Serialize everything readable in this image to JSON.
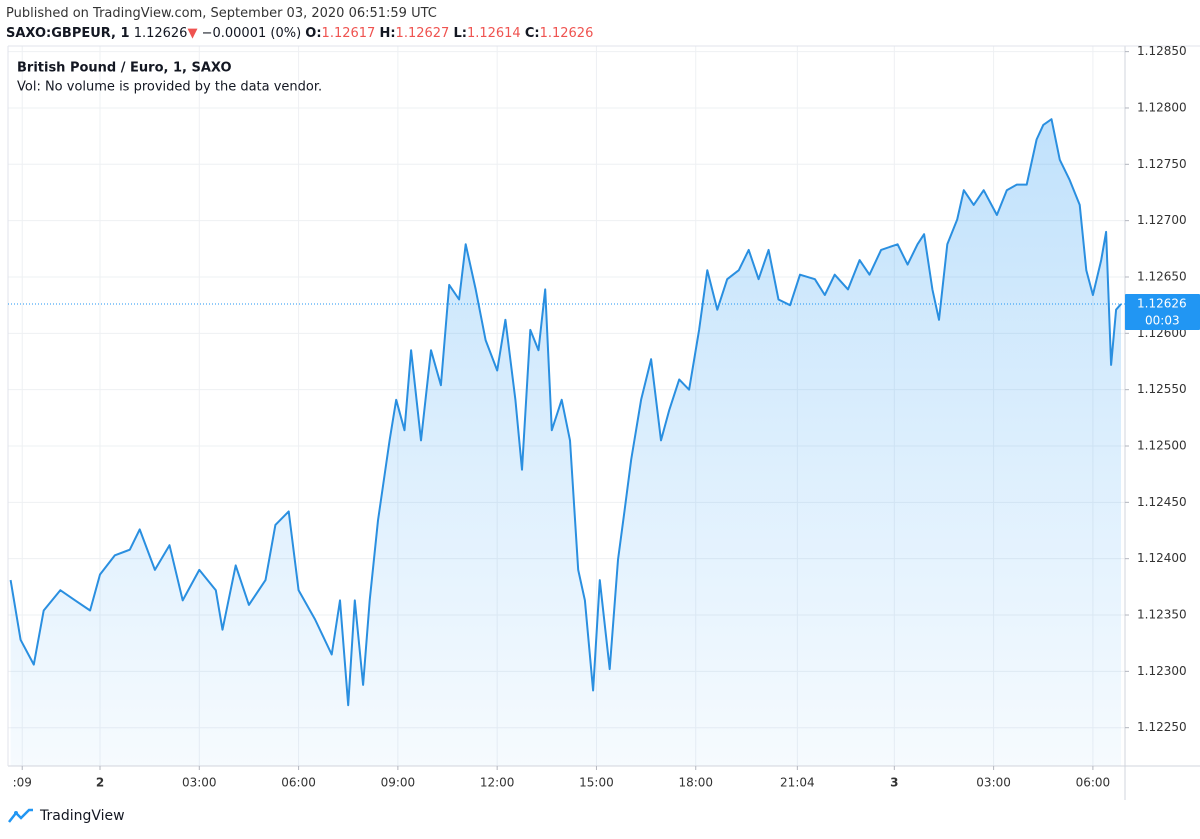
{
  "header": {
    "published": "Published on TradingView.com, September 03, 2020 06:51:59 UTC",
    "symbol": "SAXO:GBPEUR, 1",
    "price": "1.12626",
    "arrow": "▼",
    "change": "−0.00001 (0%)",
    "open_label": "O:",
    "open": "1.12617",
    "high_label": "H:",
    "high": "1.12627",
    "low_label": "L:",
    "low": "1.12614",
    "close_label": "C:",
    "close": "1.12626"
  },
  "chart_data": {
    "type": "area",
    "legend_title": "British Pound / Euro, 1, SAXO",
    "volume_note": "Vol: No volume is provided by the data vendor.",
    "series": [
      {
        "name": "SAXO:GBPEUR",
        "color": "#2a8fe0",
        "x": [
          -2.7,
          -2.4,
          -2.0,
          -1.7,
          -1.2,
          -0.75,
          -0.3,
          0,
          0.45,
          0.9,
          1.2,
          1.66,
          2.1,
          2.5,
          3.0,
          3.5,
          3.7,
          4.1,
          4.5,
          5.0,
          5.3,
          5.7,
          6.0,
          6.5,
          7.0,
          7.25,
          7.5,
          7.7,
          7.95,
          8.15,
          8.4,
          8.75,
          8.95,
          9.2,
          9.4,
          9.7,
          10.0,
          10.3,
          10.55,
          10.85,
          11.05,
          11.35,
          11.65,
          12.0,
          12.25,
          12.55,
          12.75,
          13.0,
          13.25,
          13.45,
          13.65,
          13.95,
          14.2,
          14.45,
          14.65,
          14.9,
          15.1,
          15.4,
          15.65,
          15.85,
          16.05,
          16.35,
          16.65,
          16.95,
          17.2,
          17.5,
          17.8,
          18.1,
          18.35,
          18.65,
          18.95,
          19.3,
          19.6,
          19.9,
          20.2,
          20.5,
          20.85,
          21.15,
          21.6,
          21.9,
          22.2,
          22.6,
          22.95,
          23.25,
          23.6,
          24.1,
          24.4,
          24.7,
          24.9,
          25.15,
          25.35,
          25.6,
          25.9,
          26.1,
          26.4,
          26.7,
          27.1,
          27.4,
          27.7,
          28.0,
          28.3,
          28.5,
          28.75,
          29.0,
          29.3,
          29.6,
          29.8,
          30.0,
          30.25,
          30.4,
          30.55,
          30.7,
          30.85
        ],
        "values": [
          1.12381,
          1.12328,
          1.12306,
          1.12354,
          1.12372,
          1.12363,
          1.12354,
          1.12386,
          1.12403,
          1.12408,
          1.12426,
          1.1239,
          1.12412,
          1.12363,
          1.1239,
          1.12372,
          1.12337,
          1.12394,
          1.12359,
          1.12381,
          1.1243,
          1.12442,
          1.12372,
          1.12346,
          1.12315,
          1.12363,
          1.1227,
          1.12363,
          1.12288,
          1.12363,
          1.12434,
          1.12505,
          1.12541,
          1.12514,
          1.12585,
          1.12505,
          1.12585,
          1.12554,
          1.12643,
          1.1263,
          1.12679,
          1.12639,
          1.12594,
          1.12567,
          1.12612,
          1.12541,
          1.12479,
          1.12603,
          1.12585,
          1.12639,
          1.12514,
          1.12541,
          1.12505,
          1.1239,
          1.12363,
          1.12283,
          1.12381,
          1.12302,
          1.12399,
          1.12443,
          1.12488,
          1.12541,
          1.12577,
          1.12505,
          1.12532,
          1.12559,
          1.1255,
          1.12603,
          1.12656,
          1.12621,
          1.12648,
          1.12656,
          1.12674,
          1.12648,
          1.12674,
          1.1263,
          1.12625,
          1.12652,
          1.12648,
          1.12634,
          1.12652,
          1.12639,
          1.12665,
          1.12652,
          1.12674,
          1.12679,
          1.12661,
          1.12679,
          1.12688,
          1.12639,
          1.12612,
          1.12679,
          1.12701,
          1.12727,
          1.12714,
          1.12727,
          1.12705,
          1.12727,
          1.12732,
          1.12732,
          1.12772,
          1.12785,
          1.1279,
          1.12754,
          1.12736,
          1.12714,
          1.12656,
          1.12634,
          1.12665,
          1.1269,
          1.12572,
          1.12621,
          1.12626
        ]
      }
    ],
    "last_price": {
      "value": 1.12626,
      "label": "1.12626"
    },
    "countdown": "00:03",
    "xlim": [
      -2.78,
      30.97
    ],
    "ylim": [
      1.12216,
      1.12855
    ],
    "xticks": [
      {
        "value": -2.35,
        "label": ":09"
      },
      {
        "value": 0,
        "label": "2"
      },
      {
        "value": 3,
        "label": "03:00"
      },
      {
        "value": 6,
        "label": "06:00"
      },
      {
        "value": 9,
        "label": "09:00"
      },
      {
        "value": 12,
        "label": "12:00"
      },
      {
        "value": 15,
        "label": "15:00"
      },
      {
        "value": 18,
        "label": "18:00"
      },
      {
        "value": 21.07,
        "label": "21:04"
      },
      {
        "value": 24,
        "label": "3"
      },
      {
        "value": 27,
        "label": "03:00"
      },
      {
        "value": 30,
        "label": "06:00"
      }
    ],
    "yticks": [
      {
        "value": 1.1285,
        "label": "1.12850"
      },
      {
        "value": 1.128,
        "label": "1.12800"
      },
      {
        "value": 1.1275,
        "label": "1.12750"
      },
      {
        "value": 1.127,
        "label": "1.12700"
      },
      {
        "value": 1.1265,
        "label": "1.12650"
      },
      {
        "value": 1.126,
        "label": "1.12600"
      },
      {
        "value": 1.1255,
        "label": "1.12550"
      },
      {
        "value": 1.125,
        "label": "1.12500"
      },
      {
        "value": 1.1245,
        "label": "1.12450"
      },
      {
        "value": 1.124,
        "label": "1.12400"
      },
      {
        "value": 1.1235,
        "label": "1.12350"
      },
      {
        "value": 1.123,
        "label": "1.12300"
      },
      {
        "value": 1.1225,
        "label": "1.12250"
      }
    ],
    "grid": true
  },
  "footer": {
    "brand": "TradingView"
  }
}
